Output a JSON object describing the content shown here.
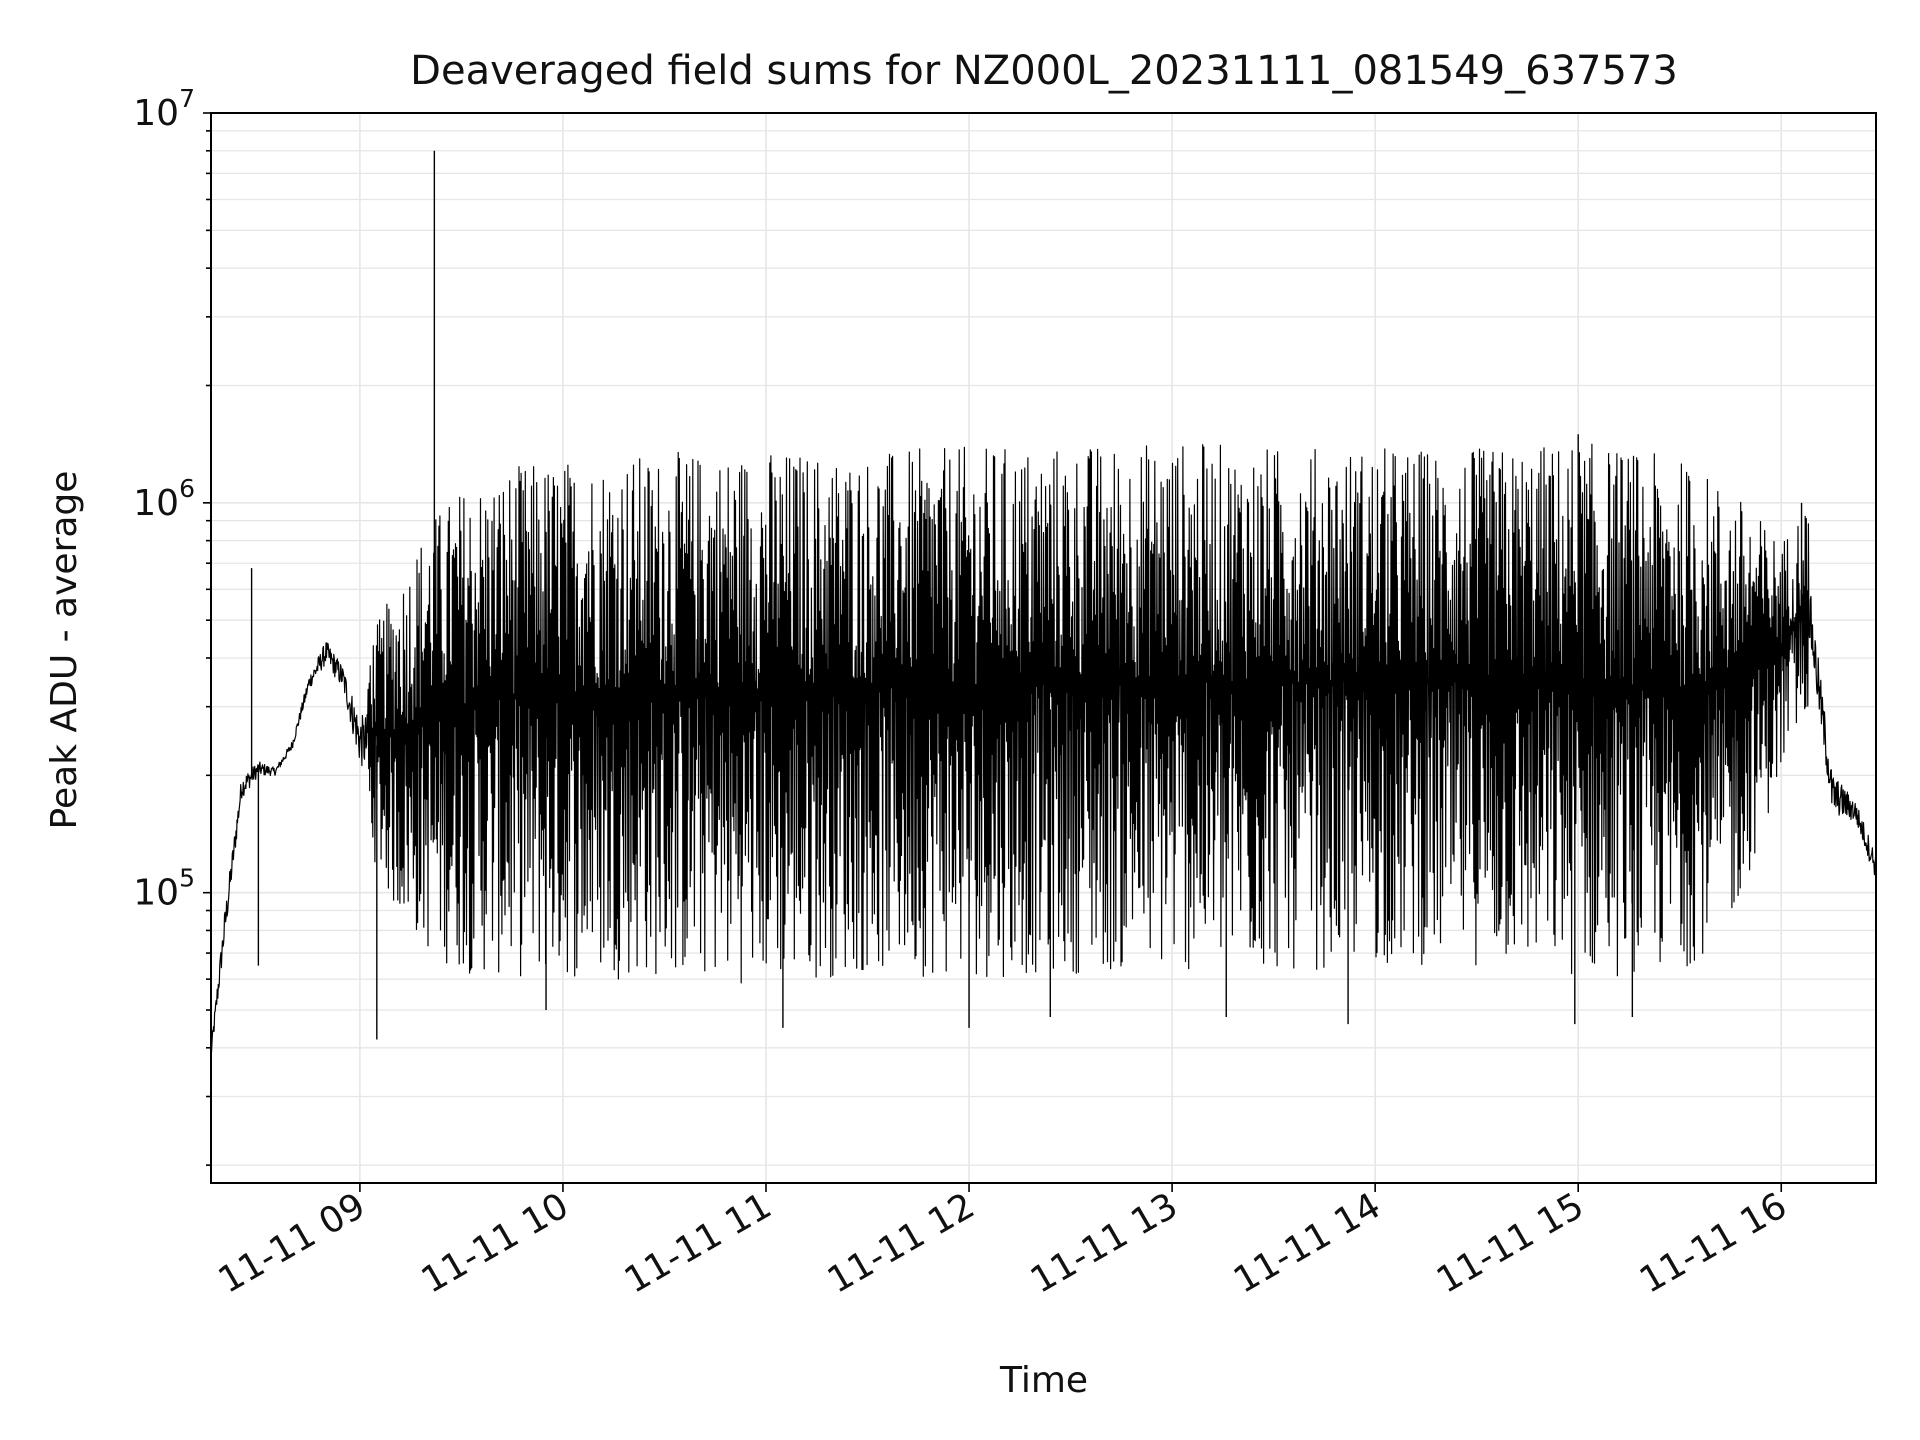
{
  "chart_data": {
    "type": "line",
    "title": "Deaveraged field sums for NZ000L_20231111_081549_637573",
    "xlabel": "Time",
    "ylabel": "Peak ADU - average",
    "x_range": [
      "2023-11-11T08:16",
      "2023-11-11T16:28"
    ],
    "y_scale": "log",
    "ylim": [
      18000,
      10000000
    ],
    "y_ticks": [
      {
        "value": 100000,
        "base": "10",
        "exp": "5"
      },
      {
        "value": 1000000,
        "base": "10",
        "exp": "6"
      },
      {
        "value": 10000000,
        "base": "10",
        "exp": "7"
      }
    ],
    "x_ticks": [
      {
        "time": "2023-11-11T09:00",
        "label": "11-11 09"
      },
      {
        "time": "2023-11-11T10:00",
        "label": "11-11 10"
      },
      {
        "time": "2023-11-11T11:00",
        "label": "11-11 11"
      },
      {
        "time": "2023-11-11T12:00",
        "label": "11-11 12"
      },
      {
        "time": "2023-11-11T13:00",
        "label": "11-11 13"
      },
      {
        "time": "2023-11-11T14:00",
        "label": "11-11 14"
      },
      {
        "time": "2023-11-11T15:00",
        "label": "11-11 15"
      },
      {
        "time": "2023-11-11T16:00",
        "label": "11-11 16"
      }
    ],
    "grid": true,
    "line_color": "#000000",
    "grid_color": "#e6e6e6",
    "series": [
      {
        "envelope": [
          {
            "x": "2023-11-11T08:16",
            "low": 33000,
            "high": 45000
          },
          {
            "x": "2023-11-11T08:20",
            "low": 60000,
            "high": 110000
          },
          {
            "x": "2023-11-11T08:25",
            "low": 150000,
            "high": 230000
          },
          {
            "x": "2023-11-11T08:30",
            "low": 180000,
            "high": 240000
          },
          {
            "x": "2023-11-11T08:35",
            "low": 190000,
            "high": 220000
          },
          {
            "x": "2023-11-11T08:40",
            "low": 220000,
            "high": 260000
          },
          {
            "x": "2023-11-11T08:45",
            "low": 300000,
            "high": 400000
          },
          {
            "x": "2023-11-11T08:50",
            "low": 330000,
            "high": 520000
          },
          {
            "x": "2023-11-11T08:55",
            "low": 280000,
            "high": 450000
          },
          {
            "x": "2023-11-11T09:00",
            "low": 150000,
            "high": 400000
          },
          {
            "x": "2023-11-11T09:10",
            "low": 90000,
            "high": 600000
          },
          {
            "x": "2023-11-11T09:20",
            "low": 70000,
            "high": 900000
          },
          {
            "x": "2023-11-11T09:30",
            "low": 62000,
            "high": 1100000
          },
          {
            "x": "2023-11-11T09:45",
            "low": 60000,
            "high": 1250000
          },
          {
            "x": "2023-11-11T10:00",
            "low": 60000,
            "high": 1300000
          },
          {
            "x": "2023-11-11T10:30",
            "low": 60000,
            "high": 1350000
          },
          {
            "x": "2023-11-11T11:00",
            "low": 58000,
            "high": 1380000
          },
          {
            "x": "2023-11-11T11:30",
            "low": 62000,
            "high": 1350000
          },
          {
            "x": "2023-11-11T12:00",
            "low": 60000,
            "high": 1400000
          },
          {
            "x": "2023-11-11T12:30",
            "low": 62000,
            "high": 1420000
          },
          {
            "x": "2023-11-11T13:00",
            "low": 62000,
            "high": 1450000
          },
          {
            "x": "2023-11-11T13:30",
            "low": 62000,
            "high": 1400000
          },
          {
            "x": "2023-11-11T14:00",
            "low": 65000,
            "high": 1400000
          },
          {
            "x": "2023-11-11T14:30",
            "low": 65000,
            "high": 1380000
          },
          {
            "x": "2023-11-11T15:00",
            "low": 60000,
            "high": 1450000
          },
          {
            "x": "2023-11-11T15:30",
            "low": 62000,
            "high": 1300000
          },
          {
            "x": "2023-11-11T15:45",
            "low": 80000,
            "high": 1100000
          },
          {
            "x": "2023-11-11T16:00",
            "low": 200000,
            "high": 800000
          },
          {
            "x": "2023-11-11T16:08",
            "low": 300000,
            "high": 1000000
          },
          {
            "x": "2023-11-11T16:15",
            "low": 120000,
            "high": 270000
          },
          {
            "x": "2023-11-11T16:22",
            "low": 130000,
            "high": 200000
          },
          {
            "x": "2023-11-11T16:28",
            "low": 90000,
            "high": 150000
          }
        ],
        "spikes": [
          {
            "x": "2023-11-11T08:28",
            "y": 680000
          },
          {
            "x": "2023-11-11T08:30",
            "y": 65000
          },
          {
            "x": "2023-11-11T09:05",
            "y": 42000
          },
          {
            "x": "2023-11-11T09:22",
            "y": 8000000
          },
          {
            "x": "2023-11-11T09:55",
            "y": 50000
          },
          {
            "x": "2023-11-11T11:05",
            "y": 45000
          },
          {
            "x": "2023-11-11T12:00",
            "y": 45000
          },
          {
            "x": "2023-11-11T12:24",
            "y": 48000
          },
          {
            "x": "2023-11-11T13:16",
            "y": 48000
          },
          {
            "x": "2023-11-11T13:52",
            "y": 46000
          },
          {
            "x": "2023-11-11T14:59",
            "y": 46000
          },
          {
            "x": "2023-11-11T15:00",
            "y": 1500000
          },
          {
            "x": "2023-11-11T15:16",
            "y": 48000
          },
          {
            "x": "2023-11-11T16:06",
            "y": 1000000
          }
        ]
      }
    ]
  }
}
